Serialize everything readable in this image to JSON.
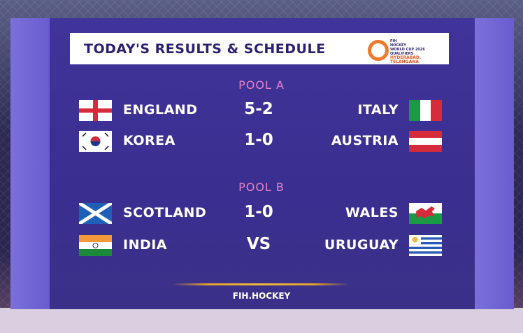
{
  "header": {
    "title": "TODAY'S RESULTS & SCHEDULE",
    "logo": {
      "line1": "FIH",
      "line2": "HOCKEY",
      "line3": "WORLD CUP 2026",
      "line4": "QUALIFIERS",
      "city": "HYDERABAD, TELANGANA"
    }
  },
  "pools": [
    {
      "label": "POOL A",
      "matches": [
        {
          "home": "ENGLAND",
          "score": "5-2",
          "away": "ITALY",
          "home_flag": "england-flag",
          "away_flag": "italy-flag"
        },
        {
          "home": "KOREA",
          "score": "1-0",
          "away": "AUSTRIA",
          "home_flag": "korea-flag",
          "away_flag": "austria-flag"
        }
      ]
    },
    {
      "label": "POOL B",
      "matches": [
        {
          "home": "SCOTLAND",
          "score": "1-0",
          "away": "WALES",
          "home_flag": "scotland-flag",
          "away_flag": "wales-flag"
        },
        {
          "home": "INDIA",
          "score": "VS",
          "away": "URUGUAY",
          "home_flag": "india-flag",
          "away_flag": "uruguay-flag"
        }
      ]
    }
  ],
  "footer": "FIH.HOCKEY",
  "colors": {
    "panel": "#3a2f90",
    "pool_label": "#e582c8",
    "title": "#2b1f70",
    "accent_gold": "#f0b840"
  }
}
